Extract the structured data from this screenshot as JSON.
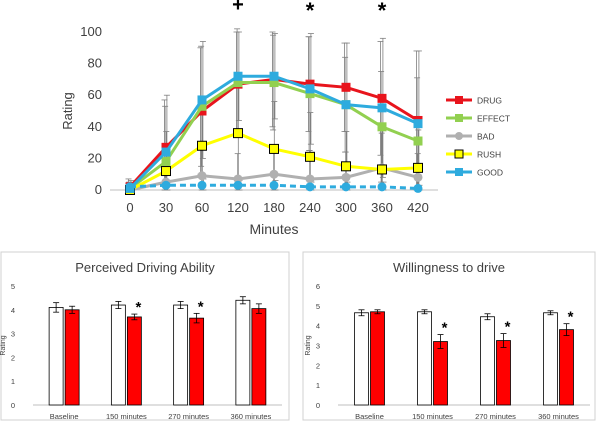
{
  "chart_data": [
    {
      "type": "line",
      "title": "",
      "xlabel": "Minutes",
      "ylabel": "Rating",
      "x": [
        "0",
        "30",
        "60",
        "120",
        "180",
        "240",
        "300",
        "360",
        "420"
      ],
      "ylim": [
        0,
        100
      ],
      "yticks": [
        "0",
        "20",
        "40",
        "60",
        "80",
        "100"
      ],
      "legend_position": "right",
      "significance": [
        {
          "x": "120",
          "symbol": "+"
        },
        {
          "x": "240",
          "symbol": "*"
        },
        {
          "x": "360",
          "symbol": "*"
        }
      ],
      "series": [
        {
          "name": "DRUG",
          "color": "#e8141c",
          "marker": "square",
          "values": [
            2,
            27,
            50,
            67,
            70,
            67,
            65,
            58,
            44
          ],
          "error": [
            5,
            30,
            40,
            33,
            30,
            30,
            28,
            36,
            44
          ]
        },
        {
          "name": "EFFECT",
          "color": "#92d050",
          "marker": "square",
          "values": [
            1,
            18,
            53,
            68,
            68,
            61,
            54,
            40,
            31
          ],
          "error": [
            4,
            35,
            38,
            34,
            30,
            36,
            30,
            35,
            40
          ]
        },
        {
          "name": "BAD",
          "color": "#b0b0b0",
          "marker": "circle",
          "values": [
            0,
            5,
            9,
            7,
            10,
            7,
            8,
            14,
            8
          ],
          "error": [
            3,
            10,
            18,
            16,
            14,
            18,
            16,
            22,
            15
          ]
        },
        {
          "name": "RUSH",
          "color": "#ffff00",
          "marker": "square-open",
          "values": [
            0,
            12,
            28,
            36,
            26,
            21,
            15,
            13,
            14
          ],
          "error": [
            3,
            25,
            30,
            35,
            30,
            28,
            22,
            25,
            24
          ]
        },
        {
          "name": "GOOD",
          "color": "#2eabde",
          "marker": "square",
          "values": [
            1,
            24,
            57,
            72,
            72,
            64,
            54,
            52,
            42
          ],
          "error": [
            5,
            36,
            37,
            28,
            27,
            35,
            39,
            44,
            46
          ]
        },
        {
          "name": "",
          "color": "#2eabde",
          "marker": "circle",
          "dashed": true,
          "values": [
            2,
            3,
            3,
            3,
            3,
            2,
            2,
            2,
            1
          ],
          "error": [
            2,
            3,
            4,
            3,
            3,
            3,
            3,
            3,
            2
          ]
        }
      ]
    },
    {
      "type": "bar",
      "title": "Perceived Driving Ability",
      "xlabel": "",
      "ylabel": "Rating",
      "categories": [
        "Baseline",
        "150 minutes",
        "270 minutes",
        "360 minutes"
      ],
      "ylim": [
        0,
        5
      ],
      "yticks": [
        "0",
        "1",
        "2",
        "3",
        "4",
        "5"
      ],
      "significant": [
        false,
        true,
        true,
        false
      ],
      "series": [
        {
          "name": "",
          "color": "#ffffff",
          "values": [
            4.1,
            4.2,
            4.2,
            4.4
          ],
          "error": [
            0.2,
            0.15,
            0.15,
            0.15
          ]
        },
        {
          "name": "",
          "color": "#ff0000",
          "values": [
            4.0,
            3.7,
            3.65,
            4.05
          ],
          "error": [
            0.15,
            0.12,
            0.2,
            0.2
          ]
        }
      ]
    },
    {
      "type": "bar",
      "title": "Willingness to drive",
      "xlabel": "",
      "ylabel": "Rating",
      "categories": [
        "Baseline",
        "150 minutes",
        "270 minutes",
        "360 minutes"
      ],
      "ylim": [
        0,
        6
      ],
      "yticks": [
        "0",
        "1",
        "2",
        "3",
        "4",
        "5",
        "6"
      ],
      "significant": [
        false,
        true,
        true,
        true
      ],
      "series": [
        {
          "name": "",
          "color": "#ffffff",
          "values": [
            4.65,
            4.7,
            4.45,
            4.65
          ],
          "error": [
            0.15,
            0.1,
            0.15,
            0.1
          ]
        },
        {
          "name": "",
          "color": "#ff0000",
          "values": [
            4.7,
            3.2,
            3.25,
            3.8
          ],
          "error": [
            0.1,
            0.35,
            0.35,
            0.3
          ]
        }
      ]
    }
  ]
}
